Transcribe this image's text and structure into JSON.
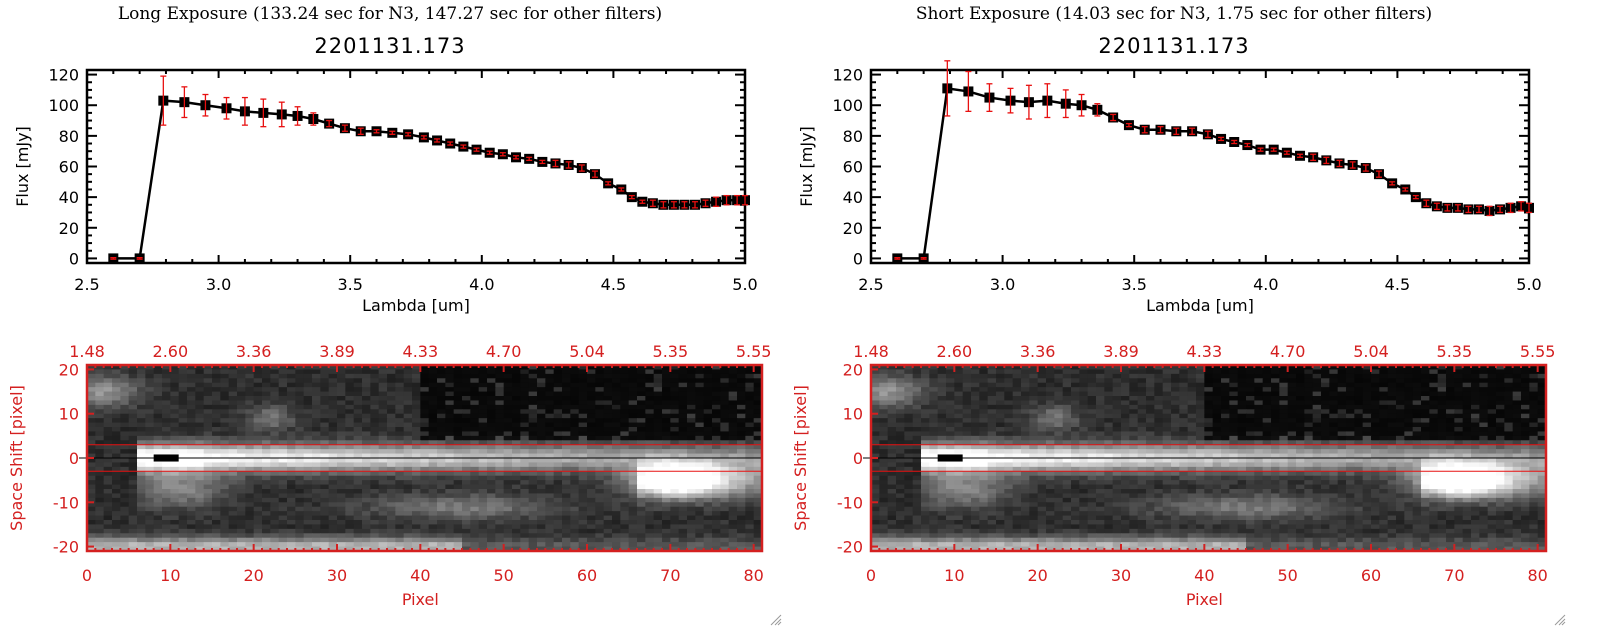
{
  "panels": [
    {
      "title": "Long Exposure (133.24 sec for N3, 147.27 sec for other filters)",
      "object_id": "2201131.173"
    },
    {
      "title": "Short Exposure (14.03 sec for N3, 1.75 sec for other filters)",
      "object_id": "2201131.173"
    }
  ],
  "colors": {
    "axis": "#000000",
    "data_marker": "#000000",
    "error_bar": "#e81010",
    "image_axis": "#d42020",
    "aperture_line": "#e81010",
    "center_line": "#000000"
  },
  "chart_data": [
    {
      "type": "line",
      "title": "2201131.173",
      "xlabel": "Lambda [um]",
      "ylabel": "Flux [mJy]",
      "xlim": [
        2.5,
        5.0
      ],
      "ylim": [
        -3,
        123
      ],
      "xticks": [
        "2.5",
        "3.0",
        "3.5",
        "4.0",
        "4.5",
        "5.0"
      ],
      "yticks": [
        "0",
        "20",
        "40",
        "60",
        "80",
        "100",
        "120"
      ],
      "grid": false,
      "series": [
        {
          "name": "Long Exposure",
          "x": [
            2.6,
            2.7,
            2.79,
            2.87,
            2.95,
            3.03,
            3.1,
            3.17,
            3.24,
            3.3,
            3.36,
            3.42,
            3.48,
            3.54,
            3.6,
            3.66,
            3.72,
            3.78,
            3.83,
            3.88,
            3.93,
            3.98,
            4.03,
            4.08,
            4.13,
            4.18,
            4.23,
            4.28,
            4.33,
            4.38,
            4.43,
            4.48,
            4.53,
            4.57,
            4.61,
            4.65,
            4.69,
            4.73,
            4.77,
            4.81,
            4.85,
            4.89,
            4.93,
            4.97,
            5.0
          ],
          "y": [
            0,
            0,
            103,
            102,
            100,
            98,
            96,
            95,
            94,
            93,
            91,
            88,
            85,
            83,
            83,
            82,
            81,
            79,
            77,
            75,
            73,
            71,
            69,
            68,
            66,
            65,
            63,
            62,
            61,
            59,
            55,
            49,
            45,
            40,
            37,
            36,
            35,
            35,
            35,
            35,
            36,
            37,
            38,
            38,
            38
          ],
          "yerr": [
            0.5,
            0.5,
            16,
            10,
            7,
            7,
            9,
            9,
            8,
            6,
            4,
            2,
            2,
            2,
            1,
            1,
            1,
            1,
            1,
            1,
            1,
            1,
            1,
            1,
            1,
            1,
            1,
            2,
            2,
            2,
            2,
            1,
            1,
            1,
            1,
            2,
            2,
            2,
            2,
            2,
            2,
            3,
            3,
            3,
            3
          ]
        }
      ]
    },
    {
      "type": "line",
      "title": "2201131.173",
      "xlabel": "Lambda [um]",
      "ylabel": "Flux [mJy]",
      "xlim": [
        2.5,
        5.0
      ],
      "ylim": [
        -3,
        123
      ],
      "xticks": [
        "2.5",
        "3.0",
        "3.5",
        "4.0",
        "4.5",
        "5.0"
      ],
      "yticks": [
        "0",
        "20",
        "40",
        "60",
        "80",
        "100",
        "120"
      ],
      "grid": false,
      "series": [
        {
          "name": "Short Exposure",
          "x": [
            2.6,
            2.7,
            2.79,
            2.87,
            2.95,
            3.03,
            3.1,
            3.17,
            3.24,
            3.3,
            3.36,
            3.42,
            3.48,
            3.54,
            3.6,
            3.66,
            3.72,
            3.78,
            3.83,
            3.88,
            3.93,
            3.98,
            4.03,
            4.08,
            4.13,
            4.18,
            4.23,
            4.28,
            4.33,
            4.38,
            4.43,
            4.48,
            4.53,
            4.57,
            4.61,
            4.65,
            4.69,
            4.73,
            4.77,
            4.81,
            4.85,
            4.89,
            4.93,
            4.97,
            5.0
          ],
          "y": [
            0,
            0,
            111,
            109,
            105,
            103,
            102,
            103,
            101,
            100,
            97,
            92,
            87,
            84,
            84,
            83,
            83,
            81,
            78,
            76,
            74,
            71,
            71,
            69,
            67,
            66,
            64,
            62,
            61,
            59,
            55,
            49,
            45,
            40,
            36,
            34,
            33,
            33,
            32,
            32,
            31,
            32,
            33,
            34,
            33
          ],
          "yerr": [
            0.5,
            0.5,
            18,
            13,
            9,
            8,
            11,
            11,
            9,
            7,
            4,
            2,
            1,
            2,
            2,
            2,
            2,
            2,
            1,
            1,
            1,
            1,
            1,
            1,
            1,
            2,
            2,
            2,
            2,
            2,
            2,
            1,
            1,
            1,
            2,
            2,
            2,
            2,
            2,
            2,
            3,
            2,
            3,
            3,
            3
          ]
        }
      ]
    },
    {
      "type": "heatmap",
      "title": "",
      "xlabel": "Pixel",
      "ylabel": "Space Shift [pixel]",
      "xlim": [
        0,
        81
      ],
      "ylim": [
        -21,
        21
      ],
      "xticks": [
        "0",
        "10",
        "20",
        "30",
        "40",
        "50",
        "60",
        "70",
        "80"
      ],
      "yticks": [
        "-20",
        "-10",
        "0",
        "10",
        "20"
      ],
      "top_axis_label": "Lambda [um]",
      "top_ticks": [
        "1.48",
        "2.60",
        "3.36",
        "3.89",
        "4.33",
        "4.70",
        "5.04",
        "5.35",
        "5.55"
      ],
      "aperture_lines_y": [
        3,
        -3
      ],
      "center_line_y": 0,
      "features": [
        {
          "name": "main-source",
          "x_range": [
            7,
            81
          ],
          "y": 0,
          "peak_x": 9
        },
        {
          "name": "secondary-source",
          "x_range": [
            66,
            81
          ],
          "y": -5,
          "peak_x": 70
        },
        {
          "name": "lower-band",
          "x_range": [
            0,
            81
          ],
          "y": -20
        }
      ]
    },
    {
      "type": "heatmap",
      "title": "",
      "xlabel": "Pixel",
      "ylabel": "Space Shift [pixel]",
      "xlim": [
        0,
        81
      ],
      "ylim": [
        -21,
        21
      ],
      "xticks": [
        "0",
        "10",
        "20",
        "30",
        "40",
        "50",
        "60",
        "70",
        "80"
      ],
      "yticks": [
        "-20",
        "-10",
        "0",
        "10",
        "20"
      ],
      "top_axis_label": "Lambda [um]",
      "top_ticks": [
        "1.48",
        "2.60",
        "3.36",
        "3.89",
        "4.33",
        "4.70",
        "5.04",
        "5.35",
        "5.55"
      ],
      "aperture_lines_y": [
        3,
        -3
      ],
      "center_line_y": 0,
      "features": [
        {
          "name": "main-source",
          "x_range": [
            7,
            81
          ],
          "y": 0,
          "peak_x": 9
        },
        {
          "name": "secondary-source",
          "x_range": [
            66,
            81
          ],
          "y": -5,
          "peak_x": 70
        },
        {
          "name": "lower-band",
          "x_range": [
            0,
            81
          ],
          "y": -20
        }
      ]
    }
  ]
}
